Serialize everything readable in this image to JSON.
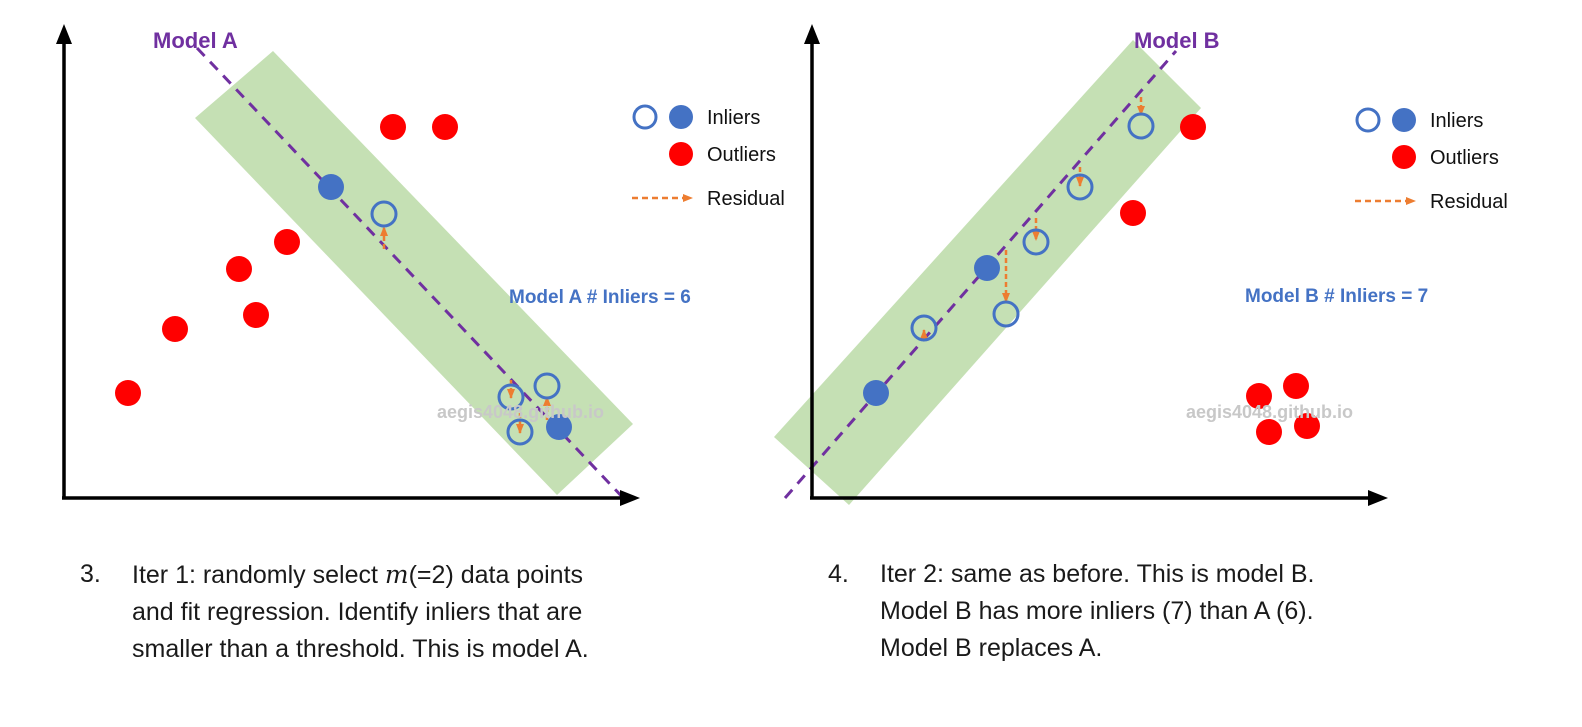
{
  "panels": [
    {
      "title": "Model A",
      "inlier_count_text": "Model A # Inliers = 6",
      "watermark": "aegis4048.github.io",
      "legend": {
        "inliers": "Inliers",
        "outliers": "Outliers",
        "residual": "Residual"
      }
    },
    {
      "title": "Model B",
      "inlier_count_text": "Model B # Inliers = 7",
      "watermark": "aegis4048.github.io",
      "legend": {
        "inliers": "Inliers",
        "outliers": "Outliers",
        "residual": "Residual"
      }
    }
  ],
  "captions": [
    {
      "number": "3.",
      "line1_before_math": "Iter 1: randomly select ",
      "line1_math": "m",
      "line1_after_math": "(=2) data points",
      "line2": "and fit regression. Identify inliers that are",
      "line3": "smaller than a threshold. This is model A."
    },
    {
      "number": "4.",
      "line1": "Iter 2: same as before. This is model B.",
      "line2": "Model B has more inliers (7) than A (6).",
      "line3": "Model B replaces A."
    }
  ],
  "colors": {
    "band": "#c5e0b4",
    "model_line": "#7030a0",
    "inlier": "#4472c4",
    "outlier": "#ff0000",
    "residual": "#ed7d31",
    "axis": "#000000",
    "count_text": "#4472c4"
  }
}
